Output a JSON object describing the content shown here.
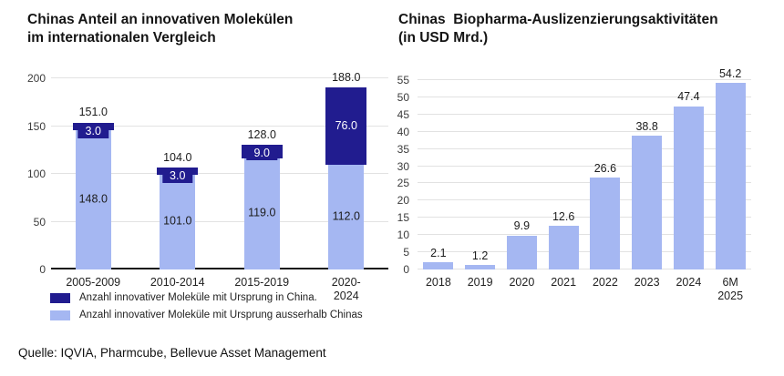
{
  "colors": {
    "bar_light": "#a5b7f2",
    "bar_dark": "#211c8f",
    "gridline": "#e2e2e2",
    "axis": "#161616",
    "dark_label_text": "#ffffff"
  },
  "source_line": "Quelle: IQVIA, Pharmcube, Bellevue Asset Management",
  "chart_data": [
    {
      "type": "bar",
      "stacked": true,
      "title": "Chinas Anteil an innovativen Molekülen\nim internationalen Vergleich",
      "categories": [
        "2005-2009",
        "2010-2014",
        "2015-2019",
        "2020-2024"
      ],
      "series": [
        {
          "name": "Anzahl innovativer Moleküle mit Ursprung ausserhalb Chinas",
          "color": "#a5b7f2",
          "values": [
            148,
            101,
            119,
            112
          ]
        },
        {
          "name": "Anzahl innovativer Moleküle mit Ursprung in China.",
          "color": "#211c8f",
          "values": [
            3,
            3,
            9,
            76
          ]
        }
      ],
      "totals": [
        151.0,
        104.0,
        128.0,
        188.0
      ],
      "value_decimals": 1,
      "ylim": [
        0,
        200
      ],
      "ytick_step": 50,
      "grid": true,
      "legend_position": "bottom-left",
      "legend": [
        {
          "label": "Anzahl innovativer Moleküle mit Ursprung in China.",
          "color": "#211c8f"
        },
        {
          "label": "Anzahl innovativer Moleküle mit Ursprung ausserhalb Chinas",
          "color": "#a5b7f2"
        }
      ]
    },
    {
      "type": "bar",
      "stacked": false,
      "title": "Chinas  Biopharma-Auslizenzierungsaktivitäten\n(in USD Mrd.)",
      "categories": [
        "2018",
        "2019",
        "2020",
        "2021",
        "2022",
        "2023",
        "2024",
        "6M\n2025"
      ],
      "values": [
        2.1,
        1.2,
        9.9,
        12.6,
        26.6,
        38.8,
        47.4,
        54.2
      ],
      "value_decimals": 1,
      "ylim": [
        0,
        55
      ],
      "ytick_step": 5,
      "grid": true,
      "legend_position": "none"
    }
  ]
}
